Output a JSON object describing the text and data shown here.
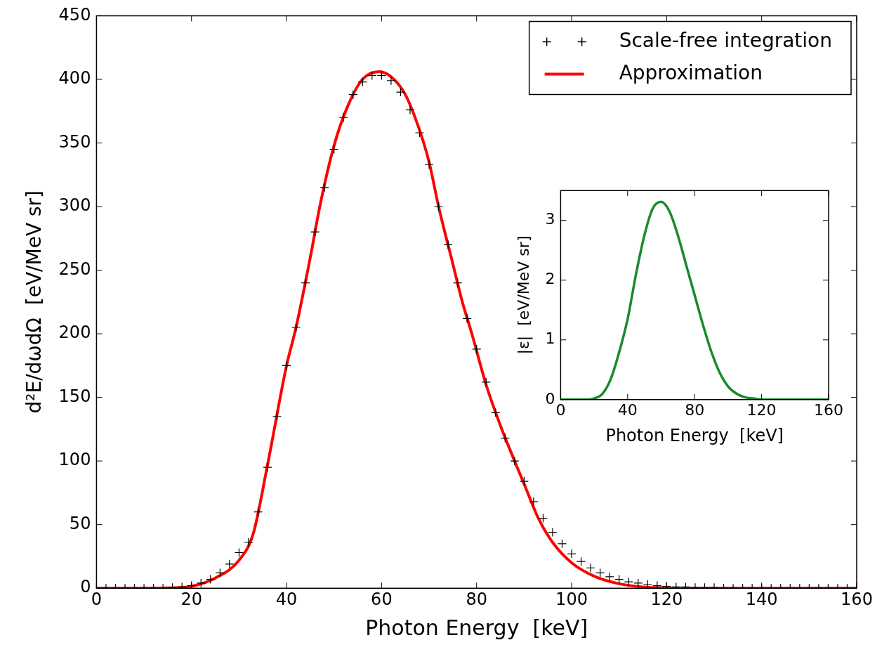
{
  "chart_data": [
    {
      "type": "scatter",
      "xlabel": "Photon Energy  [keV]",
      "ylabel": "d²E/dωdΩ  [eV/MeV sr]",
      "xlim": [
        0,
        160
      ],
      "xticks": [
        0,
        20,
        40,
        60,
        80,
        100,
        120,
        140,
        160
      ],
      "ylim": [
        0,
        450
      ],
      "yticks": [
        0,
        50,
        100,
        150,
        200,
        250,
        300,
        350,
        400,
        450
      ],
      "grid": false,
      "legend": "top right",
      "series": [
        {
          "name": "Scale-free integration",
          "marker": "cross",
          "color": "#000000",
          "x": [
            0,
            2,
            4,
            6,
            8,
            10,
            12,
            14,
            16,
            18,
            20,
            22,
            24,
            26,
            28,
            30,
            32,
            34,
            36,
            38,
            40,
            42,
            44,
            46,
            48,
            50,
            52,
            54,
            56,
            58,
            60,
            62,
            64,
            66,
            68,
            70,
            72,
            74,
            76,
            78,
            80,
            82,
            84,
            86,
            88,
            90,
            92,
            94,
            96,
            98,
            100,
            102,
            104,
            106,
            108,
            110,
            112,
            114,
            116,
            118,
            120,
            122,
            124,
            126,
            128,
            130,
            132,
            134,
            136,
            138,
            140,
            142,
            144,
            146,
            148,
            150,
            152,
            154,
            156,
            158,
            160
          ],
          "values": [
            0,
            0,
            0,
            0,
            0,
            0,
            0,
            0,
            0.5,
            1,
            2,
            4,
            7,
            12,
            19,
            28,
            36,
            60,
            95,
            135,
            175,
            205,
            240,
            280,
            315,
            345,
            370,
            388,
            398,
            403,
            403,
            399,
            390,
            376,
            358,
            333,
            300,
            270,
            240,
            212,
            188,
            162,
            138,
            118,
            100,
            84,
            68,
            55,
            44,
            35,
            27,
            21,
            16,
            12,
            9,
            7,
            5,
            4,
            3,
            2,
            1.5,
            1,
            1,
            0.5,
            0.5,
            0.5,
            0,
            0,
            0,
            0,
            0,
            0,
            0,
            0,
            0,
            0,
            0,
            0,
            0,
            0,
            0
          ]
        },
        {
          "name": "Approximation",
          "type": "line",
          "marker": "none",
          "line_style": "solid",
          "color": "#ff0000",
          "x": [
            0,
            10,
            15,
            20,
            25,
            30,
            33,
            36,
            40,
            42,
            45,
            47,
            50,
            53,
            56,
            59.5,
            62,
            65,
            68,
            70,
            72,
            75,
            77,
            79,
            82,
            85,
            88,
            90,
            93,
            96,
            100,
            105,
            110,
            115,
            120,
            130,
            160
          ],
          "values": [
            0,
            0,
            0.2,
            1.5,
            8,
            22,
            43,
            97,
            175,
            205,
            260,
            300,
            348,
            380,
            400,
            406,
            402,
            388,
            360,
            335,
            300,
            255,
            225,
            200,
            160,
            128,
            100,
            82,
            55,
            36,
            20,
            9,
            3.5,
            1,
            0.3,
            0,
            0
          ]
        }
      ]
    },
    {
      "type": "line",
      "xlabel": "Photon Energy  [keV]",
      "ylabel": "|ε|  [eV/MeV sr]",
      "xlim": [
        0,
        160
      ],
      "xticks": [
        0,
        40,
        80,
        120,
        160
      ],
      "ylim": [
        0,
        3.5
      ],
      "yticks": [
        0,
        1,
        2,
        3
      ],
      "grid": false,
      "legend": false,
      "marker": "none",
      "line_style": "solid",
      "series": [
        {
          "color": "#1a8a2a",
          "x": [
            0,
            10,
            15,
            20,
            25,
            30,
            35,
            40,
            45,
            50,
            55,
            60,
            65,
            70,
            75,
            80,
            85,
            90,
            95,
            100,
            105,
            110,
            115,
            120,
            130,
            140,
            160
          ],
          "values": [
            0,
            0,
            0,
            0.02,
            0.1,
            0.35,
            0.8,
            1.35,
            2.1,
            2.75,
            3.2,
            3.31,
            3.15,
            2.75,
            2.25,
            1.75,
            1.25,
            0.8,
            0.45,
            0.22,
            0.1,
            0.04,
            0.02,
            0,
            0,
            0,
            0
          ]
        }
      ]
    }
  ]
}
